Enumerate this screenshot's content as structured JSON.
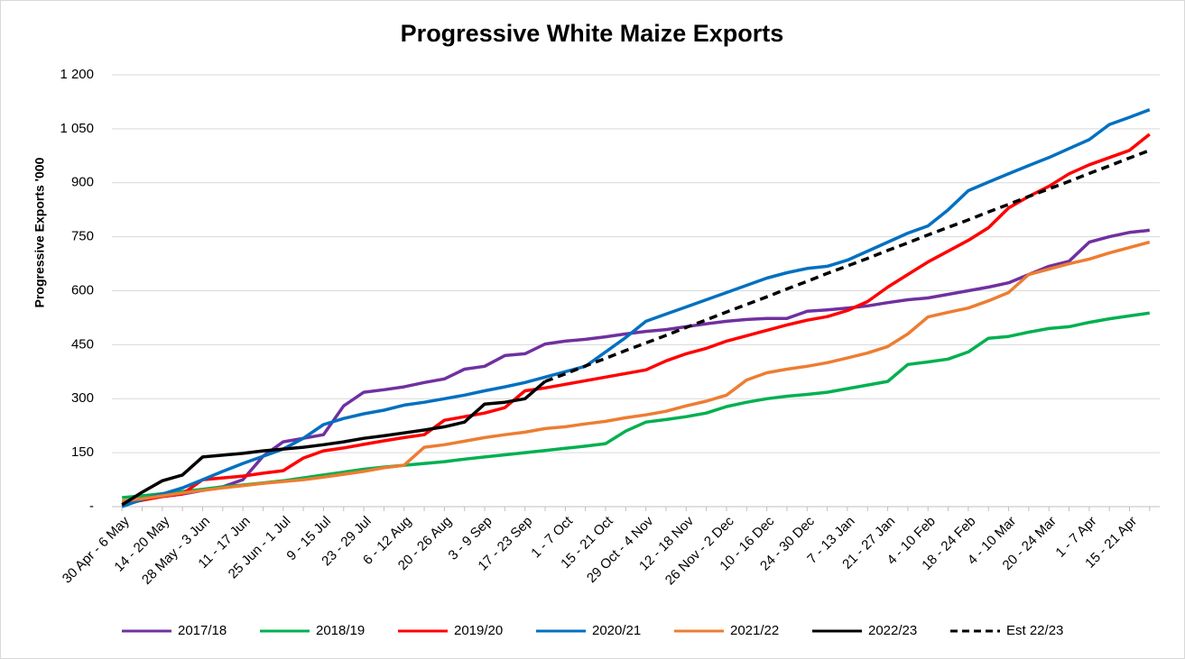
{
  "chart_data": {
    "type": "line",
    "title": "Progressive White Maize Exports",
    "y_label": "Progressive Exports '000",
    "categories": [
      "30 Apr - 6 May",
      null,
      "14 - 20 May",
      null,
      "28 May - 3 Jun",
      null,
      "11 - 17 Jun",
      null,
      "25 Jun - 1 Jul",
      null,
      "9 - 15 Jul",
      null,
      "23 - 29 Jul",
      null,
      "6 - 12 Aug",
      null,
      "20 - 26 Aug",
      null,
      "3 - 9 Sep",
      null,
      "17 - 23 Sep",
      null,
      "1 - 7 Oct",
      null,
      "15 - 21 Oct",
      null,
      "29 Oct - 4 Nov",
      null,
      "12 - 18 Nov",
      null,
      "26 Nov - 2 Dec",
      null,
      "10 - 16 Dec",
      null,
      "24 - 30 Dec",
      null,
      "7 - 13 Jan",
      null,
      "21 - 27 Jan",
      null,
      "4 - 10 Feb",
      null,
      "18 - 24 Feb",
      null,
      "4 - 10 Mar",
      null,
      "20 - 24 Mar",
      null,
      "1 - 7 Apr",
      null,
      "15 - 21 Apr",
      null
    ],
    "ylim": [
      0,
      1200
    ],
    "yticks": [
      {
        "value": 0,
        "label": "-"
      },
      150,
      300,
      450,
      600,
      750,
      900,
      {
        "value": 1050,
        "label": "1 050"
      },
      {
        "value": 1200,
        "label": "1 200"
      }
    ],
    "grid": true,
    "legend": "bottom",
    "series": [
      {
        "name": "2017/18",
        "color": "#7030a0",
        "dash": false,
        "values": [
          10,
          18,
          28,
          35,
          45,
          55,
          75,
          140,
          180,
          190,
          200,
          280,
          318,
          325,
          333,
          345,
          355,
          382,
          390,
          420,
          425,
          452,
          460,
          465,
          472,
          480,
          487,
          492,
          500,
          508,
          515,
          520,
          523,
          523,
          543,
          547,
          552,
          558,
          567,
          575,
          580,
          590,
          600,
          610,
          622,
          645,
          668,
          682,
          735,
          750,
          762,
          768
        ]
      },
      {
        "name": "2018/19",
        "color": "#00b050",
        "dash": false,
        "values": [
          25,
          30,
          36,
          42,
          48,
          55,
          60,
          66,
          72,
          80,
          88,
          96,
          104,
          110,
          115,
          120,
          125,
          132,
          138,
          144,
          150,
          156,
          162,
          168,
          175,
          210,
          235,
          242,
          250,
          260,
          278,
          290,
          300,
          307,
          312,
          318,
          328,
          338,
          348,
          395,
          402,
          410,
          430,
          468,
          473,
          485,
          495,
          500,
          512,
          522,
          530,
          538
        ]
      },
      {
        "name": "2019/20",
        "color": "#ff0000",
        "dash": false,
        "values": [
          5,
          18,
          28,
          35,
          75,
          80,
          85,
          93,
          100,
          135,
          155,
          163,
          173,
          183,
          192,
          200,
          240,
          250,
          260,
          275,
          322,
          330,
          340,
          350,
          360,
          370,
          380,
          405,
          425,
          440,
          460,
          475,
          490,
          505,
          518,
          528,
          545,
          570,
          610,
          645,
          680,
          710,
          740,
          775,
          830,
          862,
          890,
          925,
          950,
          970,
          990,
          1035
        ]
      },
      {
        "name": "2020/21",
        "color": "#0070c0",
        "dash": false,
        "values": [
          0,
          20,
          35,
          52,
          75,
          98,
          120,
          140,
          160,
          190,
          228,
          245,
          258,
          268,
          282,
          290,
          300,
          310,
          322,
          333,
          345,
          360,
          375,
          390,
          430,
          470,
          515,
          535,
          555,
          575,
          595,
          615,
          635,
          650,
          662,
          668,
          685,
          710,
          735,
          760,
          780,
          825,
          878,
          902,
          925,
          948,
          970,
          995,
          1020,
          1062,
          1082,
          1103
        ]
      },
      {
        "name": "2021/22",
        "color": "#ed7d31",
        "dash": false,
        "values": [
          15,
          22,
          30,
          38,
          45,
          52,
          58,
          65,
          70,
          75,
          82,
          90,
          98,
          108,
          115,
          165,
          172,
          182,
          192,
          200,
          207,
          217,
          222,
          230,
          237,
          247,
          255,
          265,
          280,
          293,
          310,
          352,
          372,
          382,
          390,
          400,
          413,
          427,
          445,
          480,
          527,
          540,
          552,
          572,
          595,
          645,
          660,
          675,
          688,
          705,
          720,
          735
        ]
      },
      {
        "name": "2022/23",
        "color": "#000000",
        "dash": false,
        "values": [
          5,
          40,
          72,
          88,
          138,
          143,
          148,
          155,
          160,
          165,
          172,
          180,
          190,
          197,
          205,
          213,
          222,
          235,
          285,
          290,
          300,
          348,
          null,
          null,
          null,
          null,
          null,
          null,
          null,
          null,
          null,
          null,
          null,
          null,
          null,
          null,
          null,
          null,
          null,
          null,
          null,
          null,
          null,
          null,
          null,
          null,
          null,
          null,
          null,
          null,
          null,
          null
        ]
      },
      {
        "name": "Est 22/23",
        "color": "#000000",
        "dash": true,
        "values": [
          null,
          null,
          null,
          null,
          null,
          null,
          null,
          null,
          null,
          null,
          null,
          null,
          null,
          null,
          null,
          null,
          null,
          null,
          null,
          null,
          null,
          348,
          369,
          391,
          412,
          434,
          455,
          476,
          498,
          519,
          541,
          562,
          583,
          605,
          626,
          648,
          669,
          690,
          712,
          733,
          755,
          776,
          797,
          819,
          840,
          862,
          883,
          904,
          926,
          947,
          969,
          990
        ]
      }
    ]
  }
}
